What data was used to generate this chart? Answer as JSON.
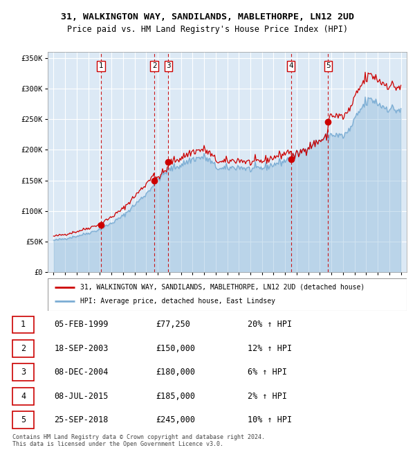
{
  "title1": "31, WALKINGTON WAY, SANDILANDS, MABLETHORPE, LN12 2UD",
  "title2": "Price paid vs. HM Land Registry's House Price Index (HPI)",
  "footer": "Contains HM Land Registry data © Crown copyright and database right 2024.\nThis data is licensed under the Open Government Licence v3.0.",
  "legend_label_red": "31, WALKINGTON WAY, SANDILANDS, MABLETHORPE, LN12 2UD (detached house)",
  "legend_label_blue": "HPI: Average price, detached house, East Lindsey",
  "ylim": [
    0,
    360000
  ],
  "yticks": [
    0,
    50000,
    100000,
    150000,
    200000,
    250000,
    300000,
    350000
  ],
  "ytick_labels": [
    "£0",
    "£50K",
    "£100K",
    "£150K",
    "£200K",
    "£250K",
    "£300K",
    "£350K"
  ],
  "xlim_start": 1994.5,
  "xlim_end": 2025.5,
  "xticks": [
    1995,
    1996,
    1997,
    1998,
    1999,
    2000,
    2001,
    2002,
    2003,
    2004,
    2005,
    2006,
    2007,
    2008,
    2009,
    2010,
    2011,
    2012,
    2013,
    2014,
    2015,
    2016,
    2017,
    2018,
    2019,
    2020,
    2021,
    2022,
    2023,
    2024,
    2025
  ],
  "sales": [
    {
      "num": 1,
      "year": 1999.08,
      "price": 77250,
      "date": "05-FEB-1999",
      "pct": "20%",
      "dir": "↑"
    },
    {
      "num": 2,
      "year": 2003.72,
      "price": 150000,
      "date": "18-SEP-2003",
      "pct": "12%",
      "dir": "↑"
    },
    {
      "num": 3,
      "year": 2004.92,
      "price": 180000,
      "date": "08-DEC-2004",
      "pct": "6%",
      "dir": "↑"
    },
    {
      "num": 4,
      "year": 2015.5,
      "price": 185000,
      "date": "08-JUL-2015",
      "pct": "2%",
      "dir": "↑"
    },
    {
      "num": 5,
      "year": 2018.72,
      "price": 245000,
      "date": "25-SEP-2018",
      "pct": "10%",
      "dir": "↑"
    }
  ],
  "bg_color": "#dce9f5",
  "red_color": "#cc0000",
  "blue_color": "#7badd4",
  "grid_color": "#ffffff"
}
